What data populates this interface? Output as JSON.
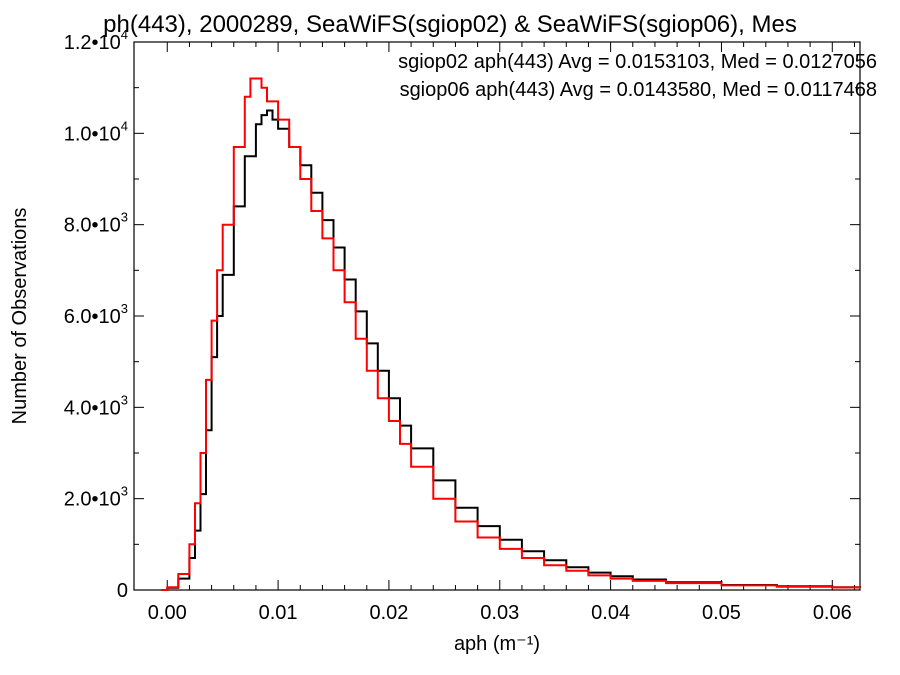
{
  "chart_data": {
    "type": "line",
    "title": "ph(443), 2000289, SeaWiFS(sgiop02) & SeaWiFS(sgiop06), Mes",
    "xlabel": "aph (m⁻¹)",
    "ylabel": "Number of Observations",
    "xlim": [
      -0.003,
      0.0625
    ],
    "ylim": [
      0,
      12000
    ],
    "x_ticks": [
      0.0,
      0.01,
      0.02,
      0.03,
      0.04,
      0.05,
      0.06
    ],
    "x_tick_labels": [
      "0.00",
      "0.01",
      "0.02",
      "0.03",
      "0.04",
      "0.05",
      "0.06"
    ],
    "y_ticks": [
      0,
      2000,
      4000,
      6000,
      8000,
      10000,
      12000
    ],
    "y_tick_labels": [
      {
        "base": "0",
        "exp": ""
      },
      {
        "base": "2.0•10",
        "exp": "3"
      },
      {
        "base": "4.0•10",
        "exp": "3"
      },
      {
        "base": "6.0•10",
        "exp": "3"
      },
      {
        "base": "8.0•10",
        "exp": "3"
      },
      {
        "base": "1.0•10",
        "exp": "4"
      },
      {
        "base": "1.2•10",
        "exp": "4"
      }
    ],
    "style": "step histogram",
    "grid": false,
    "legend_placement": "top-right",
    "series": [
      {
        "legend_text": "sgiop02 aph(443) Avg = 0.0153103, Med = 0.0127056",
        "color": "#000000",
        "x": [
          -0.0005,
          0.0,
          0.001,
          0.002,
          0.0025,
          0.003,
          0.0035,
          0.004,
          0.0045,
          0.005,
          0.006,
          0.007,
          0.008,
          0.0085,
          0.009,
          0.0095,
          0.01,
          0.011,
          0.012,
          0.013,
          0.014,
          0.015,
          0.016,
          0.017,
          0.018,
          0.019,
          0.02,
          0.021,
          0.022,
          0.024,
          0.026,
          0.028,
          0.03,
          0.032,
          0.034,
          0.036,
          0.038,
          0.04,
          0.042,
          0.045,
          0.05,
          0.055,
          0.06,
          0.0625
        ],
        "y": [
          0,
          50,
          250,
          700,
          1300,
          2100,
          3500,
          5100,
          6000,
          6900,
          8400,
          9500,
          10200,
          10400,
          10500,
          10300,
          10100,
          9700,
          9300,
          8700,
          8100,
          7500,
          6800,
          6100,
          5400,
          4800,
          4200,
          3600,
          3100,
          2400,
          1800,
          1400,
          1100,
          850,
          650,
          500,
          380,
          300,
          230,
          170,
          110,
          80,
          60,
          50
        ]
      },
      {
        "legend_text": "sgiop06 aph(443) Avg = 0.0143580, Med = 0.0117468",
        "color": "#ff0000",
        "x": [
          -0.0005,
          0.0,
          0.001,
          0.002,
          0.0025,
          0.003,
          0.0035,
          0.004,
          0.0045,
          0.005,
          0.006,
          0.007,
          0.0075,
          0.008,
          0.0085,
          0.009,
          0.01,
          0.011,
          0.012,
          0.013,
          0.014,
          0.015,
          0.016,
          0.017,
          0.018,
          0.019,
          0.02,
          0.021,
          0.022,
          0.024,
          0.026,
          0.028,
          0.03,
          0.032,
          0.034,
          0.036,
          0.038,
          0.04,
          0.042,
          0.045,
          0.05,
          0.055,
          0.06,
          0.0625
        ],
        "y": [
          0,
          60,
          350,
          1000,
          1900,
          3000,
          4600,
          5900,
          7000,
          8000,
          9700,
          10800,
          11200,
          11200,
          11000,
          10700,
          10300,
          9700,
          9000,
          8300,
          7700,
          7000,
          6300,
          5500,
          4800,
          4200,
          3700,
          3200,
          2700,
          2000,
          1500,
          1150,
          900,
          700,
          540,
          420,
          320,
          250,
          200,
          150,
          100,
          70,
          55,
          45
        ]
      }
    ]
  }
}
